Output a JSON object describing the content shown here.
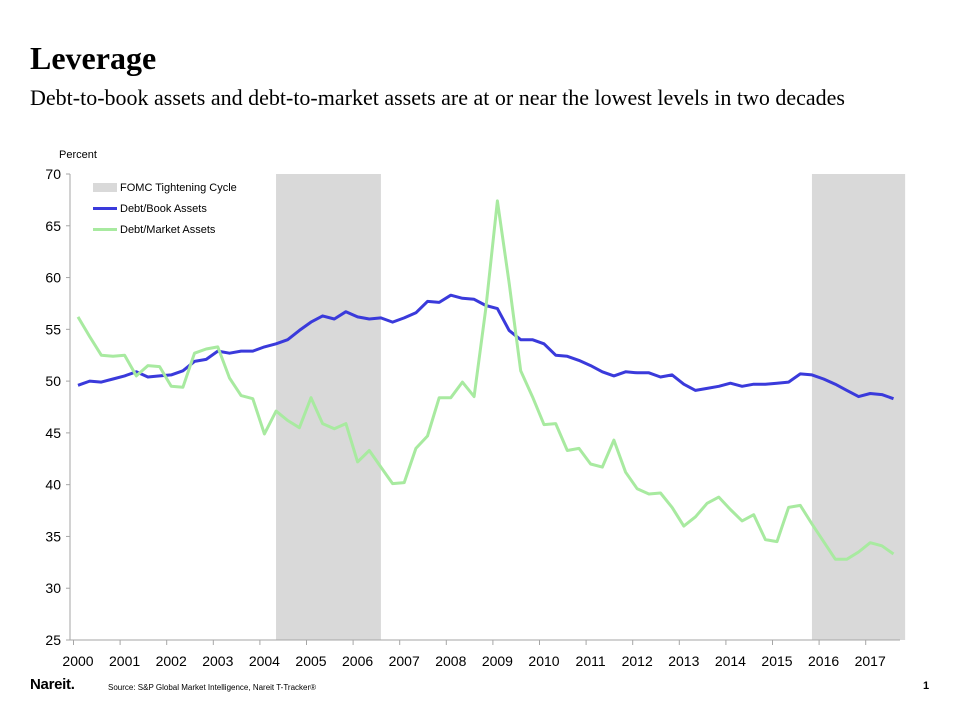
{
  "header": {
    "title": "Leverage",
    "subtitle": "Debt-to-book assets and debt-to-market assets are at or near the lowest levels in two decades"
  },
  "footer": {
    "logo": "Nareit.",
    "source": "Source: S&P Global Market Intelligence, Nareit T-Tracker®",
    "page_number": "1"
  },
  "colors": {
    "book": "#3a3adb",
    "market": "#a8eaa0",
    "shading": "#d9d9d9",
    "axis": "#a6a6a6"
  },
  "chart_data": {
    "type": "line",
    "ylabel": "Percent",
    "ylim": [
      25,
      70
    ],
    "yticks": [
      25,
      30,
      35,
      40,
      45,
      50,
      55,
      60,
      65,
      70
    ],
    "xlim": [
      2000,
      2017.8
    ],
    "xticks": [
      "2000",
      "2001",
      "2002",
      "2003",
      "2004",
      "2005",
      "2006",
      "2007",
      "2008",
      "2009",
      "2010",
      "2011",
      "2012",
      "2013",
      "2014",
      "2015",
      "2016",
      "2017"
    ],
    "grid": false,
    "legend_position": "top-left",
    "shaded_regions": {
      "name": "FOMC Tightening Cycle",
      "ranges": [
        [
          2004.25,
          2006.5
        ],
        [
          2015.75,
          2017.75
        ]
      ]
    },
    "series": [
      {
        "name": "Debt/Book Assets",
        "x": [
          2000.0,
          2000.25,
          2000.5,
          2000.75,
          2001.0,
          2001.25,
          2001.5,
          2001.75,
          2002.0,
          2002.25,
          2002.5,
          2002.75,
          2003.0,
          2003.25,
          2003.5,
          2003.75,
          2004.0,
          2004.25,
          2004.5,
          2004.75,
          2005.0,
          2005.25,
          2005.5,
          2005.75,
          2006.0,
          2006.25,
          2006.5,
          2006.75,
          2007.0,
          2007.25,
          2007.5,
          2007.75,
          2008.0,
          2008.25,
          2008.5,
          2008.75,
          2009.0,
          2009.25,
          2009.5,
          2009.75,
          2010.0,
          2010.25,
          2010.5,
          2010.75,
          2011.0,
          2011.25,
          2011.5,
          2011.75,
          2012.0,
          2012.25,
          2012.5,
          2012.75,
          2013.0,
          2013.25,
          2013.5,
          2013.75,
          2014.0,
          2014.25,
          2014.5,
          2014.75,
          2015.0,
          2015.25,
          2015.5,
          2015.75,
          2016.0,
          2016.25,
          2016.5,
          2016.75,
          2017.0,
          2017.25,
          2017.5
        ],
        "values": [
          49.6,
          50.0,
          49.9,
          50.2,
          50.5,
          50.9,
          50.4,
          50.5,
          50.6,
          51.0,
          51.9,
          52.1,
          52.9,
          52.7,
          52.9,
          52.9,
          53.3,
          53.6,
          54.0,
          54.9,
          55.7,
          56.3,
          56.0,
          56.7,
          56.2,
          56.0,
          56.1,
          55.7,
          56.1,
          56.6,
          57.7,
          57.6,
          58.3,
          58.0,
          57.9,
          57.3,
          57.0,
          54.9,
          54.0,
          54.0,
          53.6,
          52.5,
          52.4,
          52.0,
          51.5,
          50.9,
          50.5,
          50.9,
          50.8,
          50.8,
          50.4,
          50.6,
          49.7,
          49.1,
          49.3,
          49.5,
          49.8,
          49.5,
          49.7,
          49.7,
          49.8,
          49.9,
          50.7,
          50.6,
          50.2,
          49.7,
          49.1,
          48.5,
          48.8,
          48.7,
          48.3
        ]
      },
      {
        "name": "Debt/Market Assets",
        "x": [
          2000.0,
          2000.25,
          2000.5,
          2000.75,
          2001.0,
          2001.25,
          2001.5,
          2001.75,
          2002.0,
          2002.25,
          2002.5,
          2002.75,
          2003.0,
          2003.25,
          2003.5,
          2003.75,
          2004.0,
          2004.25,
          2004.5,
          2004.75,
          2005.0,
          2005.25,
          2005.5,
          2005.75,
          2006.0,
          2006.25,
          2006.5,
          2006.75,
          2007.0,
          2007.25,
          2007.5,
          2007.75,
          2008.0,
          2008.25,
          2008.5,
          2008.75,
          2009.0,
          2009.25,
          2009.5,
          2009.75,
          2010.0,
          2010.25,
          2010.5,
          2010.75,
          2011.0,
          2011.25,
          2011.5,
          2011.75,
          2012.0,
          2012.25,
          2012.5,
          2012.75,
          2013.0,
          2013.25,
          2013.5,
          2013.75,
          2014.0,
          2014.25,
          2014.5,
          2014.75,
          2015.0,
          2015.25,
          2015.5,
          2015.75,
          2016.0,
          2016.25,
          2016.5,
          2016.75,
          2017.0,
          2017.25,
          2017.5
        ],
        "values": [
          56.2,
          54.3,
          52.5,
          52.4,
          52.5,
          50.5,
          51.5,
          51.4,
          49.5,
          49.4,
          52.7,
          53.1,
          53.3,
          50.3,
          48.6,
          48.3,
          44.9,
          47.1,
          46.2,
          45.5,
          48.4,
          45.9,
          45.4,
          45.9,
          42.2,
          43.3,
          41.7,
          40.1,
          40.2,
          43.5,
          44.7,
          48.4,
          48.4,
          49.9,
          48.5,
          57.0,
          67.4,
          59.5,
          51.0,
          48.5,
          45.8,
          45.9,
          43.3,
          43.5,
          42.0,
          41.7,
          44.3,
          41.2,
          39.6,
          39.1,
          39.2,
          37.8,
          36.0,
          36.9,
          38.2,
          38.8,
          37.6,
          36.5,
          37.1,
          34.7,
          34.5,
          37.8,
          38.0,
          36.2,
          34.5,
          32.8,
          32.8,
          33.5,
          34.4,
          34.1,
          33.3
        ]
      }
    ]
  }
}
